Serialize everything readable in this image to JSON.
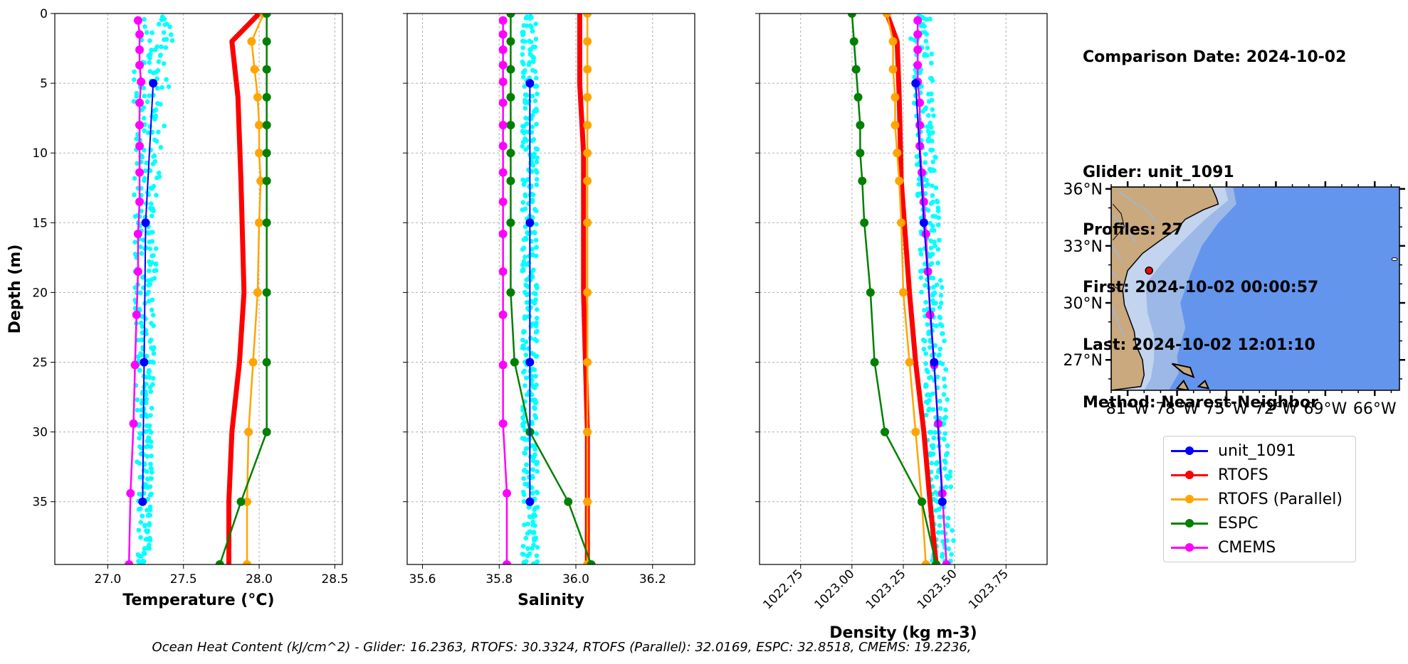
{
  "info": {
    "comparison_date": "Comparison Date: 2024-10-02",
    "glider": "Glider: unit_1091",
    "profiles": "Profiles: 27",
    "first": "First: 2024-10-02 00:00:57",
    "last": "Last: 2024-10-02 12:01:10",
    "method": "Method: Nearest-Neighbor"
  },
  "ohc_text": "Ocean Heat Content (kJ/cm^2) - Glider: 16.2363,  RTOFS: 30.3324,  RTOFS (Parallel): 32.0169,  ESPC: 32.8518,  CMEMS: 19.2236,",
  "colors": {
    "glider": "#0000ff",
    "rtofs": "#ff0000",
    "rtofs_parallel": "#ffa500",
    "espc": "#008000",
    "cmems": "#ff00ff",
    "scatter": "#00ffff",
    "land": "#c9a97d",
    "shelf": "#c2d4ee",
    "slope": "#9cb8e6",
    "ocean": "#6495ed"
  },
  "legend": [
    {
      "label": "unit_1091",
      "color": "#0000ff"
    },
    {
      "label": "RTOFS",
      "color": "#ff0000"
    },
    {
      "label": "RTOFS (Parallel)",
      "color": "#ffa500"
    },
    {
      "label": "ESPC",
      "color": "#008000"
    },
    {
      "label": "CMEMS",
      "color": "#ff00ff"
    }
  ],
  "chart_data": [
    {
      "type": "line",
      "xlabel": "Temperature (°C)",
      "ylabel": "Depth (m)",
      "xlim": [
        26.65,
        28.55
      ],
      "ylim": [
        39.5,
        0
      ],
      "xticks": [
        27.0,
        27.5,
        28.0,
        28.5
      ],
      "xtick_labels": [
        "27.0",
        "27.5",
        "28.0",
        "28.5"
      ],
      "yticks": [
        0,
        5,
        10,
        15,
        20,
        25,
        30,
        35
      ],
      "grid": true,
      "scatter_band": {
        "color": "#00ffff",
        "depth": [
          0,
          3.5,
          13.5,
          39
        ],
        "x_min": [
          27.2,
          27.17,
          27.17,
          27.2
        ],
        "x_max": [
          27.45,
          27.42,
          27.33,
          27.28
        ]
      },
      "series": [
        {
          "name": "unit_1091",
          "key": "glider",
          "depth": [
            5,
            15,
            25,
            35
          ],
          "values": [
            27.3,
            27.25,
            27.24,
            27.23
          ],
          "marker": true
        },
        {
          "name": "RTOFS",
          "key": "rtofs",
          "depth": [
            0,
            2,
            6,
            12,
            20,
            25,
            30,
            35,
            39.5
          ],
          "values": [
            28.0,
            27.82,
            27.86,
            27.88,
            27.9,
            27.87,
            27.82,
            27.8,
            27.8
          ],
          "marker": false
        },
        {
          "name": "RTOFS (Parallel)",
          "key": "rtofs_parallel",
          "depth": [
            0,
            2,
            4,
            6,
            8,
            10,
            12,
            15,
            20,
            25,
            30,
            35,
            39.5
          ],
          "values": [
            28.03,
            27.95,
            27.97,
            27.99,
            28.0,
            28.0,
            28.01,
            28.0,
            27.99,
            27.96,
            27.93,
            27.92,
            27.92
          ],
          "marker": true
        },
        {
          "name": "ESPC",
          "key": "espc",
          "depth": [
            0,
            2,
            4,
            6,
            8,
            10,
            12,
            15,
            20,
            25,
            30,
            35,
            39.5
          ],
          "values": [
            28.05,
            28.05,
            28.05,
            28.05,
            28.05,
            28.05,
            28.05,
            28.05,
            28.05,
            28.05,
            28.05,
            27.88,
            27.74
          ],
          "marker": true
        },
        {
          "name": "CMEMS",
          "key": "cmems",
          "depth": [
            0.5,
            1.5,
            2.6,
            3.7,
            4.9,
            6.4,
            8.0,
            9.5,
            11.4,
            13.5,
            15.8,
            18.5,
            21.6,
            25.2,
            29.4,
            34.4,
            39.5
          ],
          "values": [
            27.2,
            27.21,
            27.21,
            27.21,
            27.22,
            27.21,
            27.21,
            27.21,
            27.21,
            27.21,
            27.2,
            27.2,
            27.19,
            27.18,
            27.17,
            27.15,
            27.14
          ],
          "marker": true
        }
      ]
    },
    {
      "type": "line",
      "xlabel": "Salinity",
      "xlim": [
        35.56,
        36.31
      ],
      "ylim": [
        39.5,
        0
      ],
      "xticks": [
        35.6,
        35.8,
        36.0,
        36.2
      ],
      "xtick_labels": [
        "35.6",
        "35.8",
        "36.0",
        "36.2"
      ],
      "yticks": [
        0,
        5,
        10,
        15,
        20,
        25,
        30,
        35
      ],
      "grid": true,
      "scatter_band": {
        "color": "#00ffff",
        "depth": [
          0,
          39
        ],
        "x_min": [
          35.86,
          35.86
        ],
        "x_max": [
          35.9,
          35.9
        ]
      },
      "series": [
        {
          "name": "unit_1091",
          "key": "glider",
          "depth": [
            5,
            15,
            25,
            35
          ],
          "values": [
            35.88,
            35.88,
            35.88,
            35.88
          ],
          "marker": true
        },
        {
          "name": "RTOFS",
          "key": "rtofs",
          "depth": [
            0,
            5,
            10,
            20,
            30,
            35,
            39.5
          ],
          "values": [
            36.01,
            36.01,
            36.02,
            36.02,
            36.03,
            36.03,
            36.03
          ],
          "marker": false
        },
        {
          "name": "RTOFS (Parallel)",
          "key": "rtofs_parallel",
          "depth": [
            0,
            2,
            4,
            6,
            8,
            10,
            12,
            15,
            20,
            25,
            30,
            35,
            39.5
          ],
          "values": [
            36.03,
            36.03,
            36.03,
            36.03,
            36.03,
            36.03,
            36.03,
            36.03,
            36.03,
            36.03,
            36.03,
            36.03,
            36.03
          ],
          "marker": true
        },
        {
          "name": "ESPC",
          "key": "espc",
          "depth": [
            0,
            2,
            4,
            6,
            8,
            10,
            12,
            15,
            20,
            25,
            30,
            35,
            39.5
          ],
          "values": [
            35.83,
            35.83,
            35.83,
            35.83,
            35.83,
            35.83,
            35.83,
            35.83,
            35.83,
            35.84,
            35.88,
            35.98,
            36.04
          ],
          "marker": true
        },
        {
          "name": "CMEMS",
          "key": "cmems",
          "depth": [
            0.5,
            1.5,
            2.6,
            3.7,
            4.9,
            6.4,
            8.0,
            9.5,
            11.4,
            13.5,
            15.8,
            18.5,
            21.6,
            25.2,
            29.4,
            34.4,
            39.5
          ],
          "values": [
            35.81,
            35.81,
            35.81,
            35.81,
            35.81,
            35.81,
            35.81,
            35.81,
            35.81,
            35.81,
            35.81,
            35.81,
            35.81,
            35.81,
            35.81,
            35.82,
            35.82
          ],
          "marker": true
        }
      ]
    },
    {
      "type": "line",
      "xlabel": "Density (kg m-3)",
      "xlim": [
        1022.55,
        1023.95
      ],
      "ylim": [
        39.5,
        0
      ],
      "xticks": [
        1022.75,
        1023.0,
        1023.25,
        1023.5,
        1023.75
      ],
      "xtick_labels": [
        "1022.75",
        "1023.00",
        "1023.25",
        "1023.50",
        "1023.75"
      ],
      "xtick_rotation": 45,
      "yticks": [
        0,
        5,
        10,
        15,
        20,
        25,
        30,
        35
      ],
      "grid": true,
      "scatter_band": {
        "color": "#00ffff",
        "depth": [
          0,
          39
        ],
        "x_min": [
          1023.28,
          1023.39
        ],
        "x_max": [
          1023.38,
          1023.5
        ]
      },
      "series": [
        {
          "name": "unit_1091",
          "key": "glider",
          "depth": [
            5,
            15,
            25,
            35
          ],
          "values": [
            1023.31,
            1023.35,
            1023.4,
            1023.44
          ],
          "marker": true
        },
        {
          "name": "RTOFS",
          "key": "rtofs",
          "depth": [
            0,
            2,
            6,
            12,
            20,
            25,
            30,
            35,
            39.5
          ],
          "values": [
            1023.17,
            1023.22,
            1023.23,
            1023.24,
            1023.28,
            1023.31,
            1023.35,
            1023.38,
            1023.41
          ],
          "marker": false
        },
        {
          "name": "RTOFS (Parallel)",
          "key": "rtofs_parallel",
          "depth": [
            0,
            2,
            4,
            6,
            8,
            10,
            12,
            15,
            20,
            25,
            30,
            35,
            39.5
          ],
          "values": [
            1023.17,
            1023.2,
            1023.2,
            1023.21,
            1023.21,
            1023.22,
            1023.23,
            1023.24,
            1023.25,
            1023.28,
            1023.31,
            1023.34,
            1023.36
          ],
          "marker": true
        },
        {
          "name": "ESPC",
          "key": "espc",
          "depth": [
            0,
            2,
            4,
            6,
            8,
            10,
            12,
            15,
            20,
            25,
            30,
            35,
            39.5
          ],
          "values": [
            1023.0,
            1023.01,
            1023.02,
            1023.03,
            1023.04,
            1023.04,
            1023.05,
            1023.06,
            1023.09,
            1023.11,
            1023.16,
            1023.34,
            1023.41
          ],
          "marker": true
        },
        {
          "name": "CMEMS",
          "key": "cmems",
          "depth": [
            0.5,
            1.5,
            2.6,
            3.7,
            4.9,
            6.4,
            8.0,
            9.5,
            11.4,
            13.5,
            15.8,
            18.5,
            21.6,
            25.2,
            29.4,
            34.4,
            39.5
          ],
          "values": [
            1023.32,
            1023.32,
            1023.32,
            1023.32,
            1023.32,
            1023.33,
            1023.33,
            1023.33,
            1023.34,
            1023.35,
            1023.36,
            1023.37,
            1023.38,
            1023.4,
            1023.42,
            1023.44,
            1023.46
          ],
          "marker": true
        }
      ]
    }
  ],
  "map": {
    "lat_ticks": [
      "36°N",
      "33°N",
      "30°N",
      "27°N"
    ],
    "lon_ticks": [
      "81°W",
      "78°W",
      "75°W",
      "72°W",
      "69°W",
      "66°W"
    ],
    "lat_values": [
      36,
      33,
      30,
      27
    ],
    "lon_values": [
      -81,
      -78,
      -75,
      -72,
      -69,
      -66
    ],
    "lon_range": [
      -82,
      -64.5
    ],
    "lat_range": [
      25.4,
      36.1
    ],
    "glider_position": {
      "lon": -79.7,
      "lat": 31.7
    },
    "land_coast": [
      [
        -82,
        36.1
      ],
      [
        -75.9,
        36.1
      ],
      [
        -75.6,
        35.5
      ],
      [
        -75.5,
        35.2
      ],
      [
        -76.4,
        34.9
      ],
      [
        -77.5,
        34.4
      ],
      [
        -78.0,
        33.9
      ],
      [
        -79.0,
        33.3
      ],
      [
        -80.1,
        32.6
      ],
      [
        -81.0,
        31.7
      ],
      [
        -81.3,
        30.7
      ],
      [
        -81.2,
        29.9
      ],
      [
        -80.6,
        28.5
      ],
      [
        -80.5,
        27.8
      ],
      [
        -80.1,
        27.0
      ],
      [
        -80.0,
        26.2
      ],
      [
        -80.2,
        25.6
      ],
      [
        -82,
        25.4
      ]
    ],
    "shelf_edge": [
      [
        -75.1,
        36.1
      ],
      [
        -74.9,
        35.4
      ],
      [
        -76.3,
        34.4
      ],
      [
        -77.7,
        33.2
      ],
      [
        -78.9,
        32.1
      ],
      [
        -79.9,
        31.0
      ],
      [
        -79.8,
        29.5
      ],
      [
        -79.4,
        28.3
      ],
      [
        -79.4,
        27.0
      ],
      [
        -79.6,
        26.0
      ],
      [
        -80.0,
        25.4
      ]
    ],
    "slope_edge": [
      [
        -74.6,
        36.1
      ],
      [
        -74.4,
        35.2
      ],
      [
        -75.5,
        34.2
      ],
      [
        -76.5,
        33.0
      ],
      [
        -77.2,
        31.5
      ],
      [
        -77.8,
        30.0
      ],
      [
        -77.5,
        28.7
      ],
      [
        -78.0,
        27.2
      ],
      [
        -77.9,
        26.3
      ],
      [
        -78.5,
        25.4
      ]
    ],
    "islands": [
      [
        [
          -78.3,
          26.8
        ],
        [
          -77.2,
          26.6
        ],
        [
          -77.0,
          26.1
        ],
        [
          -77.6,
          26.3
        ]
      ],
      [
        [
          -78.0,
          25.5
        ],
        [
          -77.3,
          25.4
        ],
        [
          -77.6,
          25.9
        ]
      ],
      [
        [
          -76.7,
          25.6
        ],
        [
          -76.1,
          25.5
        ],
        [
          -76.3,
          25.9
        ]
      ]
    ],
    "bermuda": {
      "lon": -64.8,
      "lat": 32.3
    }
  }
}
